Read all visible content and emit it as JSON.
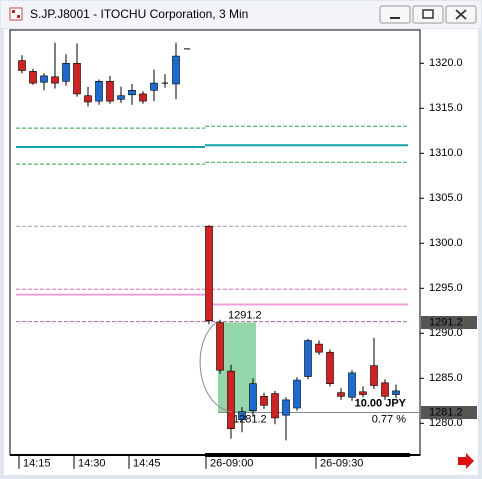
{
  "window_title": "S.JP.J8001 - ITOCHU Corporation, 3 Min",
  "chart_data": {
    "type": "candlestick",
    "categories": [
      "14:15",
      null,
      null,
      null,
      null,
      "14:30",
      null,
      null,
      null,
      null,
      "14:45",
      null,
      null,
      null,
      null,
      null,
      null,
      "26-09:00",
      null,
      null,
      null,
      null,
      null,
      null,
      null,
      null,
      null,
      "26-09:30",
      null,
      null,
      null,
      null,
      null,
      null,
      null
    ],
    "open": [
      1320.3,
      1319.1,
      1317.9,
      1318.5,
      1318.0,
      1320.0,
      1316.4,
      1315.8,
      1318.0,
      1316.0,
      1316.5,
      1316.6,
      1317.0,
      1317.8,
      1317.7,
      1321.6,
      null,
      1301.9,
      1291.2,
      1285.8,
      1280.4,
      1281.4,
      1283.0,
      1283.3,
      1280.9,
      1281.7,
      1285.2,
      1288.8,
      1287.9,
      1283.4,
      1282.9,
      1283.5,
      1286.4,
      1284.5,
      1283.2
    ],
    "high": [
      1320.9,
      1319.4,
      1318.9,
      1322.3,
      1321.0,
      1322.2,
      1317.4,
      1318.2,
      1318.6,
      1317.4,
      1317.7,
      1316.9,
      1319.3,
      1318.8,
      1322.3,
      1321.6,
      null,
      1302.0,
      1291.5,
      1286.5,
      1281.8,
      1285.0,
      1283.4,
      1283.6,
      1282.9,
      1285.1,
      1289.4,
      1289.2,
      1288.2,
      1283.9,
      1285.9,
      1284.1,
      1289.5,
      1284.9,
      1284.3
    ],
    "low": [
      1318.9,
      1317.6,
      1317.0,
      1317.2,
      1317.5,
      1316.3,
      1315.2,
      1315.4,
      1315.5,
      1315.6,
      1315.4,
      1315.5,
      1315.8,
      1317.3,
      1316.0,
      1321.6,
      null,
      1291.0,
      1285.5,
      1278.3,
      1279.0,
      1280.8,
      1281.6,
      1279.9,
      1278.1,
      1281.4,
      1284.9,
      1287.6,
      1284.1,
      1282.6,
      1282.5,
      1282.9,
      1283.8,
      1282.6,
      1282.8
    ],
    "close": [
      1319.2,
      1317.8,
      1318.6,
      1317.8,
      1320.0,
      1316.6,
      1315.7,
      1318.0,
      1315.8,
      1316.4,
      1317.0,
      1315.8,
      1317.8,
      1317.7,
      1320.8,
      1321.6,
      null,
      1291.4,
      1285.9,
      1279.4,
      1281.3,
      1284.4,
      1282.0,
      1280.6,
      1282.6,
      1284.8,
      1289.2,
      1287.9,
      1284.4,
      1283.0,
      1285.6,
      1283.2,
      1284.2,
      1283.0,
      1283.6
    ],
    "up_color": "#1a6bd6",
    "down_color": "#d42020",
    "ylim": [
      1276.4,
      1323.7
    ],
    "yticks": [
      {
        "value": 1280,
        "label": "1280.0"
      },
      {
        "value": 1285,
        "label": "1285.0"
      },
      {
        "value": 1290,
        "label": "1290.0"
      },
      {
        "value": 1295,
        "label": "1295.0"
      },
      {
        "value": 1300,
        "label": "1300.0"
      },
      {
        "value": 1305,
        "label": "1305.0"
      },
      {
        "value": 1310,
        "label": "1310.0"
      },
      {
        "value": 1315,
        "label": "1315.0"
      },
      {
        "value": 1320,
        "label": "1320.0"
      }
    ],
    "levels": [
      {
        "values": [
          1312.8,
          1313.0
        ],
        "color": "#2aa84a",
        "dashed": true
      },
      {
        "values": [
          1308.8,
          1309.0
        ],
        "color": "#2aa84a",
        "dashed": true
      },
      {
        "values": [
          1310.7,
          1310.9
        ],
        "color": "#13a3a8",
        "dashed": false
      },
      {
        "values": [
          1301.9,
          1301.9
        ],
        "color": "#a0a0a0",
        "dashed": true
      },
      {
        "values": [
          1294.9,
          1294.9
        ],
        "color": "#e070b8",
        "dashed": true
      },
      {
        "values": [
          1294.3,
          1293.2
        ],
        "color": "#f0a0d8",
        "dashed": false
      },
      {
        "values": [
          1291.3,
          1291.3
        ],
        "color": "#c060a0",
        "dashed": true
      }
    ],
    "price_labels": [
      {
        "value": 1291.2,
        "label": "1291.2"
      },
      {
        "value": 1281.2,
        "label": "1281.2"
      }
    ],
    "measure": {
      "change_label": "10.00 JPY",
      "percent_label": "0.77 %"
    }
  }
}
